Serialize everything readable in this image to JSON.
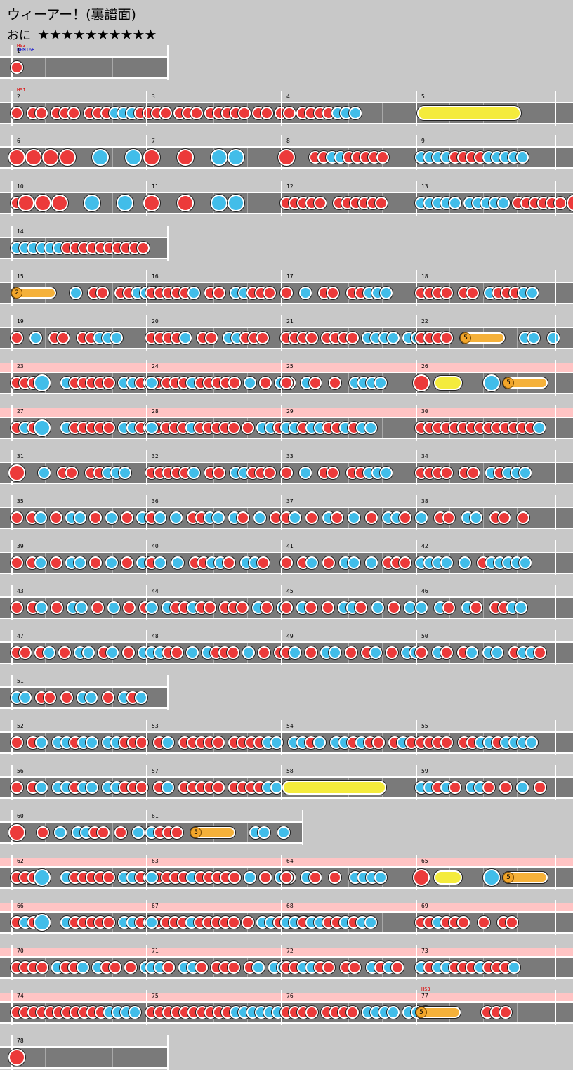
{
  "header": {
    "title": "ウィーアー！(裏譜面)",
    "difficulty_label": "おに",
    "stars": "★★★★★★★★★★"
  },
  "colors": {
    "don": "#ec3a3a",
    "ka": "#41bde9",
    "roll": "#f4eb3c",
    "balloon": "#f5b13a",
    "gogo_band": "#ffc4c4",
    "lane": "#7a7a7a",
    "background": "#c8c8c8"
  },
  "tags": {
    "hs3": "HS3",
    "bpm": "BPM168",
    "hs1": "HS1"
  },
  "rows": [
    {
      "gogo": false,
      "measures": [
        {
          "num": "1",
          "notes": "d"
        }
      ]
    },
    {
      "gogo": false,
      "measures": [
        {
          "num": "2",
          "notes": "d-dd-ddd-dddkkkdd"
        },
        {
          "num": "3",
          "notes": "-dd-ddd-ddddd-dd-dd-ddd"
        },
        {
          "num": "4",
          "notes": "-ddddkkk"
        },
        {
          "num": "5",
          "notes": "R"
        }
      ]
    },
    {
      "gogo": false,
      "measures": [
        {
          "num": "6",
          "notes": "DDDD-K-K"
        },
        {
          "num": "7",
          "notes": "D-D-KK"
        },
        {
          "num": "8",
          "notes": "D-ddkkddddd"
        },
        {
          "num": "9",
          "notes": "kkkkddddkkkkk"
        }
      ]
    },
    {
      "gogo": false,
      "measures": [
        {
          "num": "10",
          "notes": "dDDD-K-K"
        },
        {
          "num": "11",
          "notes": "D-D-KK"
        },
        {
          "num": "12",
          "notes": "ddddd-dddddd"
        },
        {
          "num": "13",
          "notes": "kkkkk-kkkkk-dddddd-D"
        }
      ]
    },
    {
      "gogo": false,
      "measures": [
        {
          "num": "14",
          "notes": "kkkkkkdddddddddd"
        }
      ]
    },
    {
      "gogo": false,
      "measures": [
        {
          "num": "15",
          "notes": "B2-k-dd-ddkkk"
        },
        {
          "num": "16",
          "notes": "dddddk-dd-kkddd"
        },
        {
          "num": "17",
          "notes": "d-k-dd-ddkkk"
        },
        {
          "num": "18",
          "notes": "dddd-dd-kdddkk"
        }
      ]
    },
    {
      "gogo": false,
      "measures": [
        {
          "num": "19",
          "notes": "d-k-dd-ddkkk"
        },
        {
          "num": "20",
          "notes": "ddddk-dd-kkddd"
        },
        {
          "num": "21",
          "notes": "dddd-dddd-kkkk-kkk"
        },
        {
          "num": "22",
          "notes": "dddd-B5-kk-k"
        }
      ]
    },
    {
      "gogo": true,
      "measures": [
        {
          "num": "23",
          "notes": "dddK-kddddd-kkddd"
        },
        {
          "num": "24",
          "notes": "k-dddkddddd-k-d-kd"
        },
        {
          "num": "25",
          "notes": "d-kd-d-kkkk"
        },
        {
          "num": "26",
          "notes": "DR-KB5"
        }
      ]
    },
    {
      "gogo": true,
      "measures": [
        {
          "num": "27",
          "notes": "dkdK-kddddd-kkddd"
        },
        {
          "num": "28",
          "notes": "k-dddkddddd-d-kkddkkk"
        },
        {
          "num": "29",
          "notes": "kkdkkddkdkk"
        },
        {
          "num": "30",
          "notes": "ddddddddddddddk"
        }
      ]
    },
    {
      "gogo": false,
      "measures": [
        {
          "num": "31",
          "notes": "D-k-dd-ddkkk"
        },
        {
          "num": "32",
          "notes": "dddddk-dd-kkddd"
        },
        {
          "num": "33",
          "notes": "d-k-dd-ddkkk"
        },
        {
          "num": "34",
          "notes": "dddd-dd-kdkkk"
        }
      ]
    },
    {
      "gogo": false,
      "measures": [
        {
          "num": "35",
          "notes": "d-dk-d-kk-d-k-d-kk"
        },
        {
          "num": "36",
          "notes": "dk-k-ddkk-kd-k-d"
        },
        {
          "num": "37",
          "notes": "dk-d-kd-k-d-kkd"
        },
        {
          "num": "38",
          "notes": "k-dd-kk-dd-d"
        }
      ]
    },
    {
      "gogo": false,
      "measures": [
        {
          "num": "39",
          "notes": "d-dk-d-kk-d-k-d-kk"
        },
        {
          "num": "40",
          "notes": "dk-k-ddkkd-kkd"
        },
        {
          "num": "41",
          "notes": "d-dk-d-kk-k-ddd"
        },
        {
          "num": "42",
          "notes": "kkkk-k-dkkkkk"
        }
      ]
    },
    {
      "gogo": false,
      "measures": [
        {
          "num": "43",
          "notes": "d-dk-d-kk-d-k-d-d"
        },
        {
          "num": "44",
          "notes": "k-kddkdd-ddd-kd-k"
        },
        {
          "num": "45",
          "notes": "d-kd-d-kkd-k-d-k"
        },
        {
          "num": "46",
          "notes": "k-kd-kd-ddkk"
        }
      ]
    },
    {
      "gogo": false,
      "measures": [
        {
          "num": "47",
          "notes": "dd-dk-d-kk-dk-d-kk"
        },
        {
          "num": "48",
          "notes": "kkdd-k-kddd-k-d-dk"
        },
        {
          "num": "49",
          "notes": "dk-d-kk-d-dk-d-kk"
        },
        {
          "num": "50",
          "notes": "d-kd-dk-kk-dkkd"
        }
      ]
    },
    {
      "gogo": false,
      "measures": [
        {
          "num": "51",
          "notes": "kk-dd-d-kk-d-kdk"
        }
      ]
    },
    {
      "gogo": false,
      "measures": [
        {
          "num": "52",
          "notes": "d-dk-kkdkk-kkddd"
        },
        {
          "num": "53",
          "notes": "-dk-ddddd-ddddkk"
        },
        {
          "num": "54",
          "notes": "-kkdk-kkdkdd-dkd"
        },
        {
          "num": "55",
          "notes": "dddd-ddkkdkkkk"
        }
      ]
    },
    {
      "gogo": false,
      "measures": [
        {
          "num": "56",
          "notes": "d-dk-kkdkk-kkddd"
        },
        {
          "num": "57",
          "notes": "-dk-ddddd-ddddkk"
        },
        {
          "num": "58",
          "notes": "R"
        },
        {
          "num": "59",
          "notes": "kkdkd-kkd-d-k-d"
        }
      ]
    },
    {
      "gogo": false,
      "measures": [
        {
          "num": "60",
          "notes": "D-d-k-kkdd-d-k"
        },
        {
          "num": "61",
          "notes": "kddd-B5-kk-k"
        }
      ]
    },
    {
      "gogo": true,
      "measures": [
        {
          "num": "62",
          "notes": "dddK-kddddd-kkddd"
        },
        {
          "num": "63",
          "notes": "k-dddkddddd-k-d-kd"
        },
        {
          "num": "64",
          "notes": "d-kd-d-kkkk"
        },
        {
          "num": "65",
          "notes": "DR-KB5"
        }
      ]
    },
    {
      "gogo": true,
      "measures": [
        {
          "num": "66",
          "notes": "dkdK-kddddd-kkddd"
        },
        {
          "num": "67",
          "notes": "k-dddkddddd-d-kkddkkk"
        },
        {
          "num": "68",
          "notes": "kkdkkddkdkk"
        },
        {
          "num": "69",
          "notes": "ddkddd-d-dd"
        }
      ]
    },
    {
      "gogo": true,
      "measures": [
        {
          "num": "70",
          "notes": "dddd-kddk-kdd-d-kk"
        },
        {
          "num": "71",
          "notes": "kkd-kkd-ddd-dk-kk"
        },
        {
          "num": "72",
          "notes": "ddkkdd-dd-kdkd"
        },
        {
          "num": "73",
          "notes": "kdkkdddkdddk"
        }
      ]
    },
    {
      "gogo": true,
      "measures": [
        {
          "num": "74",
          "notes": "dddddddddddkkkk"
        },
        {
          "num": "75",
          "notes": "ddddddddddkkkkkk"
        },
        {
          "num": "76",
          "notes": "dddd-dddd-kkkk-kkk"
        },
        {
          "num": "77",
          "notes": "B5-ddd"
        }
      ]
    },
    {
      "gogo": false,
      "measures": [
        {
          "num": "78",
          "notes": "D"
        }
      ]
    }
  ]
}
